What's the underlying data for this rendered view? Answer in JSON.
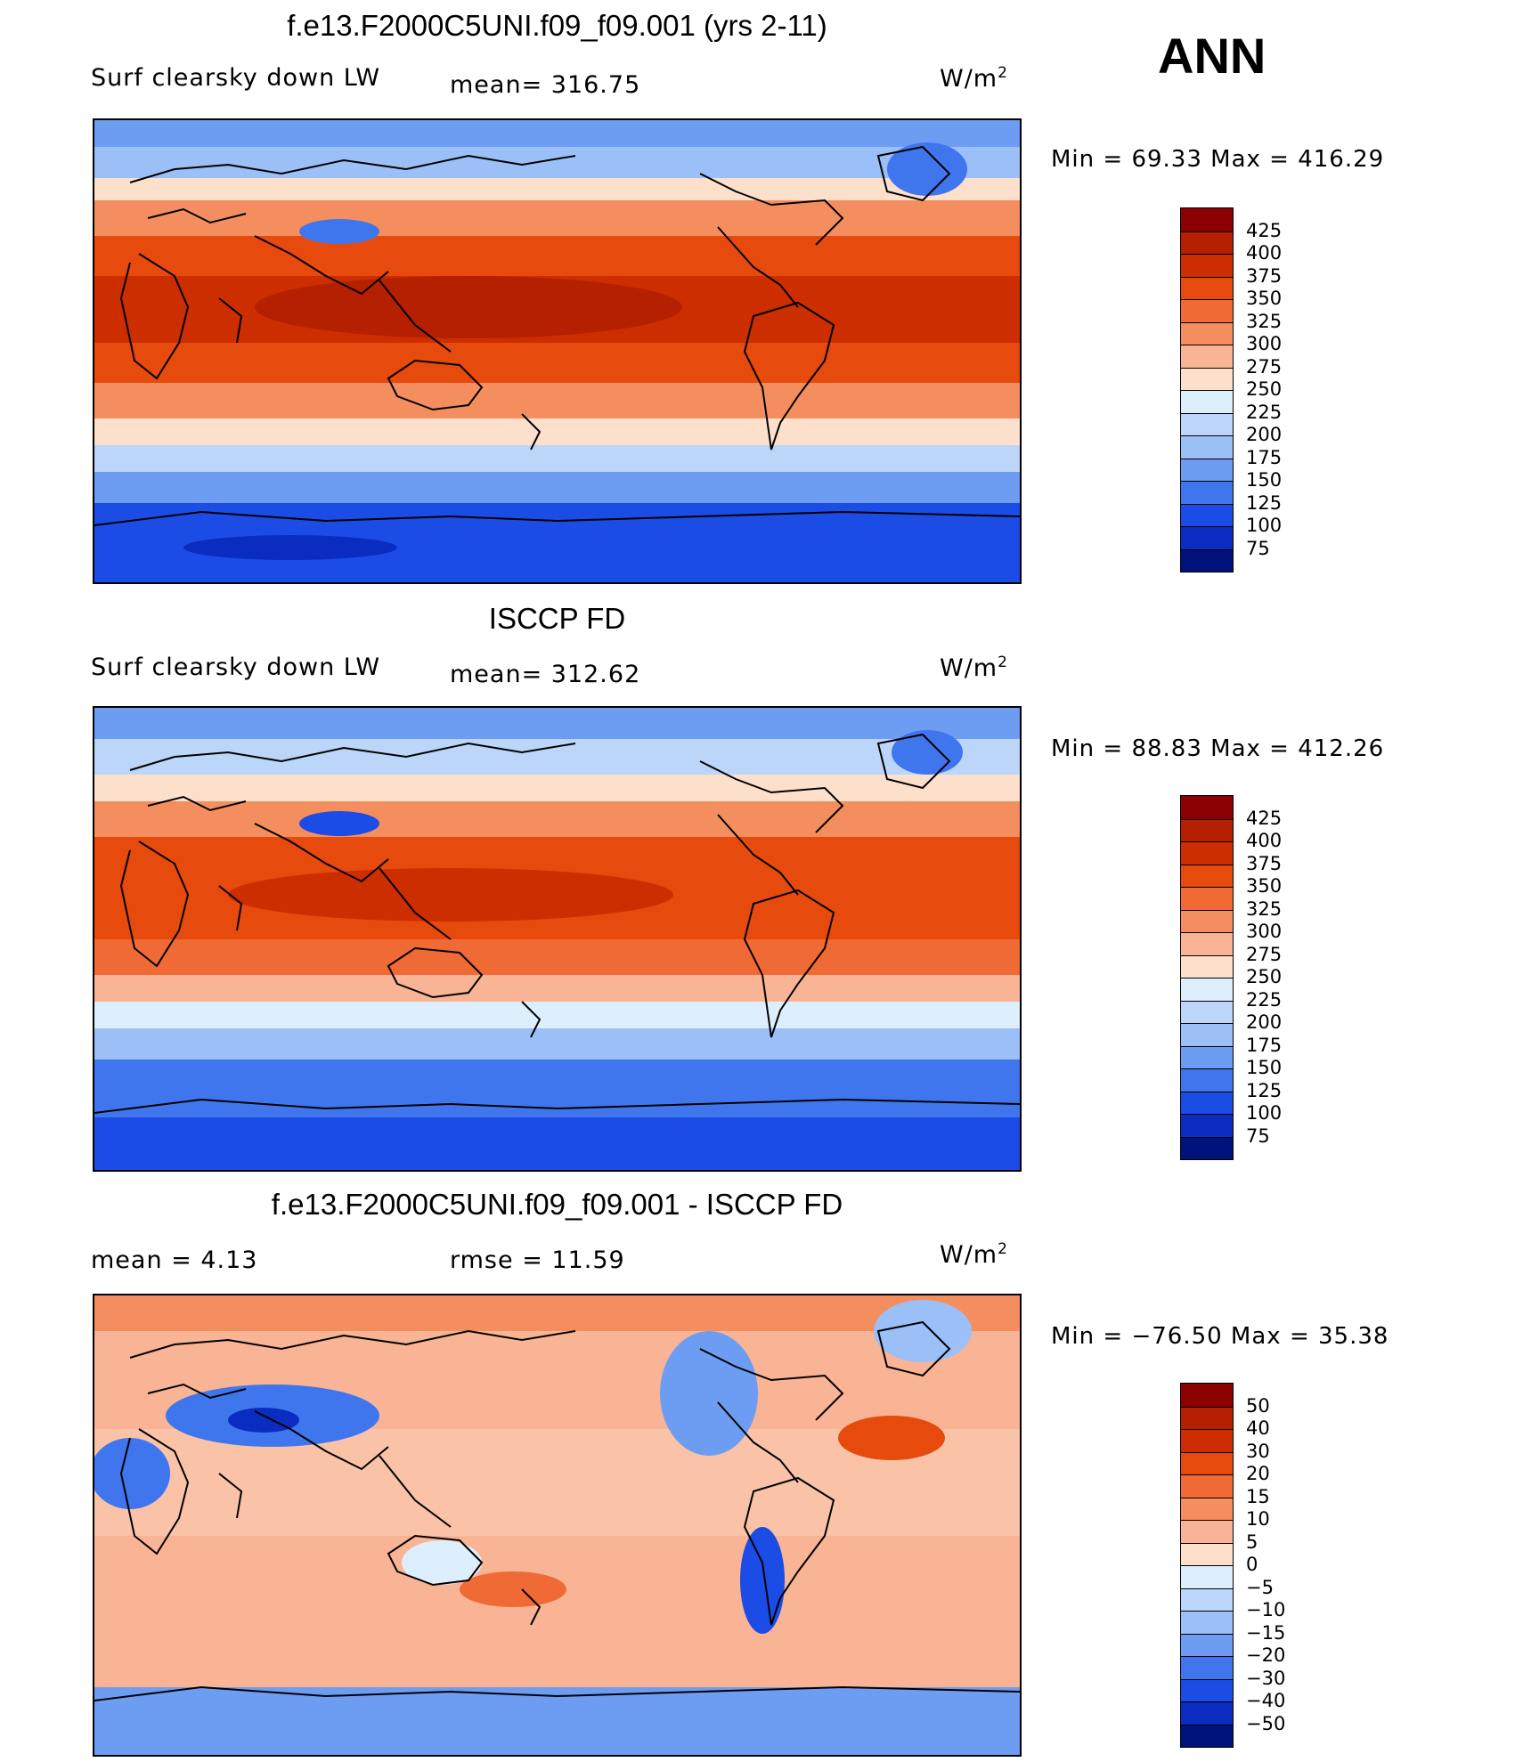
{
  "season": "ANN",
  "panels": [
    {
      "title": "f.e13.F2000C5UNI.f09_f09.001 (yrs 2-11)",
      "variable": "Surf clearsky down LW",
      "stat": "mean= 316.75",
      "units": "W/m",
      "units_exp": "2",
      "minmax": "Min =   69.33 Max = 416.29"
    },
    {
      "title": "ISCCP FD",
      "variable": "Surf clearsky down LW",
      "stat": "mean= 312.62",
      "units": "W/m",
      "units_exp": "2",
      "minmax": "Min =   88.83 Max = 412.26"
    },
    {
      "title": "f.e13.F2000C5UNI.f09_f09.001 - ISCCP FD",
      "variable": "mean =     4.13",
      "stat": "rmse =    11.59",
      "units": "W/m",
      "units_exp": "2",
      "minmax": "Min = −76.50 Max =   35.38"
    }
  ],
  "chart_data": [
    {
      "type": "heatmap",
      "title": "f.e13.F2000C5UNI.f09_f09.001 (yrs 2-11)",
      "variable": "Surf clearsky down LW",
      "units": "W/m2",
      "mean": 316.75,
      "min": 69.33,
      "max": 416.29,
      "colorbar_levels": [
        "425",
        "400",
        "375",
        "350",
        "325",
        "300",
        "275",
        "250",
        "225",
        "200",
        "175",
        "150",
        "125",
        "100",
        "75"
      ],
      "colorbar_colors": [
        "#8b0000",
        "#b42000",
        "#cc2e00",
        "#e64a0d",
        "#f06a35",
        "#f58e5e",
        "#f9b496",
        "#fde0cc",
        "#ddeefc",
        "#bcd6fa",
        "#9ac0f7",
        "#6d9df2",
        "#3f76ee",
        "#1c4ce6",
        "#0b2cc0",
        "#00137a"
      ]
    },
    {
      "type": "heatmap",
      "title": "ISCCP FD",
      "variable": "Surf clearsky down LW",
      "units": "W/m2",
      "mean": 312.62,
      "min": 88.83,
      "max": 412.26,
      "colorbar_levels": [
        "425",
        "400",
        "375",
        "350",
        "325",
        "300",
        "275",
        "250",
        "225",
        "200",
        "175",
        "150",
        "125",
        "100",
        "75"
      ],
      "colorbar_colors": [
        "#8b0000",
        "#b42000",
        "#cc2e00",
        "#e64a0d",
        "#f06a35",
        "#f58e5e",
        "#f9b496",
        "#fde0cc",
        "#ddeefc",
        "#bcd6fa",
        "#9ac0f7",
        "#6d9df2",
        "#3f76ee",
        "#1c4ce6",
        "#0b2cc0",
        "#00137a"
      ]
    },
    {
      "type": "heatmap",
      "title": "f.e13.F2000C5UNI.f09_f09.001 - ISCCP FD",
      "units": "W/m2",
      "mean": 4.13,
      "rmse": 11.59,
      "min": -76.5,
      "max": 35.38,
      "colorbar_levels": [
        "50",
        "40",
        "30",
        "20",
        "15",
        "10",
        "5",
        "0",
        "−5",
        "−10",
        "−15",
        "−20",
        "−30",
        "−40",
        "−50"
      ],
      "colorbar_colors": [
        "#8b0000",
        "#b42000",
        "#cc2e00",
        "#e64a0d",
        "#f06a35",
        "#f58e5e",
        "#f9b496",
        "#fde0cc",
        "#ddeefc",
        "#bcd6fa",
        "#9ac0f7",
        "#6d9df2",
        "#3f76ee",
        "#1c4ce6",
        "#0b2cc0",
        "#00137a"
      ]
    }
  ]
}
